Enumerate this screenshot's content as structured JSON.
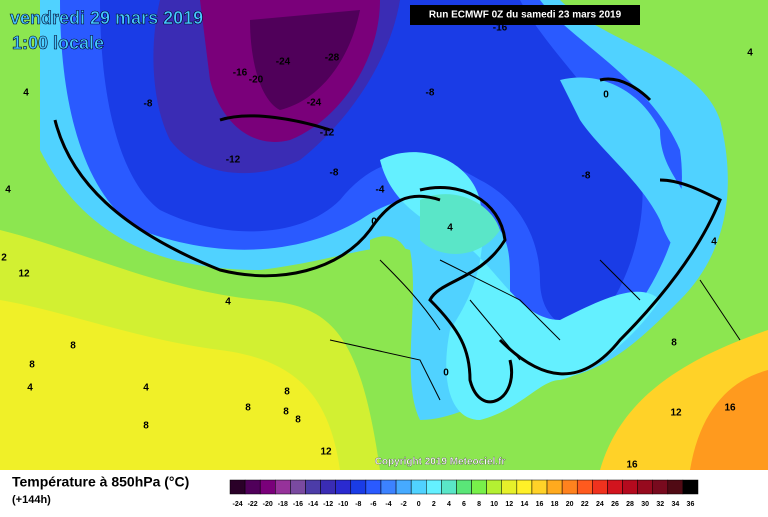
{
  "header": {
    "title": "vendredi 29 mars 2019",
    "time": "1:00 locale",
    "run": "Run ECMWF 0Z du samedi 23 mars 2019",
    "copyright": "Copyright 2019 Meteociel.fr"
  },
  "legend": {
    "title": "Température à 850hPa (°C)",
    "lead": "(+144h)",
    "values": [
      -24,
      -22,
      -20,
      -18,
      -16,
      -14,
      -12,
      -10,
      -8,
      -6,
      -4,
      -2,
      0,
      2,
      4,
      6,
      8,
      10,
      12,
      14,
      16,
      18,
      20,
      22,
      24,
      26,
      28,
      30,
      32,
      34,
      36
    ],
    "colors": [
      "#2a0028",
      "#50005a",
      "#7a007a",
      "#96329a",
      "#7a4aa0",
      "#4c3ca8",
      "#3a2cb4",
      "#2a2ad0",
      "#1a3ce6",
      "#2a5aff",
      "#3c82ff",
      "#46aaff",
      "#50d2ff",
      "#64f0ff",
      "#5ae6c8",
      "#5ae678",
      "#78f04a",
      "#b4f032",
      "#e6f02a",
      "#fff028",
      "#ffd228",
      "#ffaa1e",
      "#ff821e",
      "#ff5a1e",
      "#f0321e",
      "#d2141e",
      "#b40a1e",
      "#960a1e",
      "#780a1e",
      "#500a14",
      "#000000"
    ]
  },
  "contour_labels": [
    -16,
    -16,
    -20,
    -24,
    -28,
    -24,
    -12,
    -12,
    -8,
    -8,
    -8,
    -4,
    0,
    -8,
    0,
    4,
    4,
    4,
    4,
    4,
    2,
    12,
    4,
    8,
    8,
    4,
    4,
    8,
    8,
    8,
    8,
    8,
    0,
    8,
    12,
    16,
    12,
    16
  ]
}
